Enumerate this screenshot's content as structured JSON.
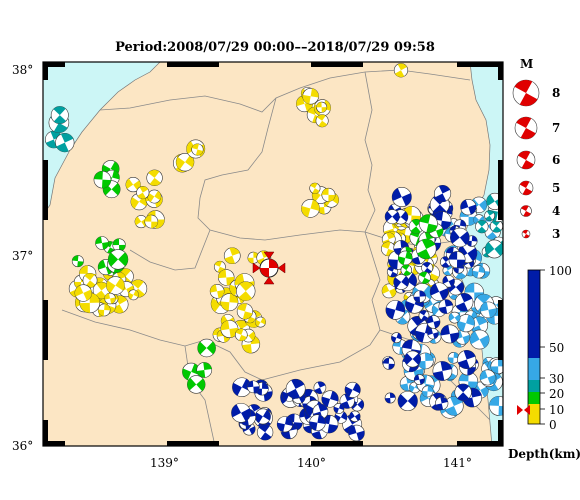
{
  "title": "Period:2008/07/29 00:00––2018/07/29 09:58",
  "axes": {
    "lat_labels": [
      "38°",
      "37°",
      "36°"
    ],
    "lon_labels": [
      "139°",
      "140°",
      "141°"
    ]
  },
  "magnitude_legend": {
    "title": "M",
    "items": [
      "8",
      "7",
      "6",
      "5",
      "4",
      "3"
    ]
  },
  "depth_legend": {
    "title": "Depth(km)",
    "ticks": [
      "100",
      "50",
      "30",
      "20",
      "10",
      "0"
    ]
  },
  "colors": {
    "land": "#fce6c4",
    "sea": "#ccf6f6",
    "depth_0_10": "#f4dc00",
    "depth_10_20": "#00c800",
    "depth_20_30": "#00a0a0",
    "depth_30_50": "#36a8e6",
    "depth_50_100": "#001ca8",
    "main_event": "#e00000"
  },
  "main_event": {
    "label": "mainshock",
    "marker": "red-triangles"
  }
}
